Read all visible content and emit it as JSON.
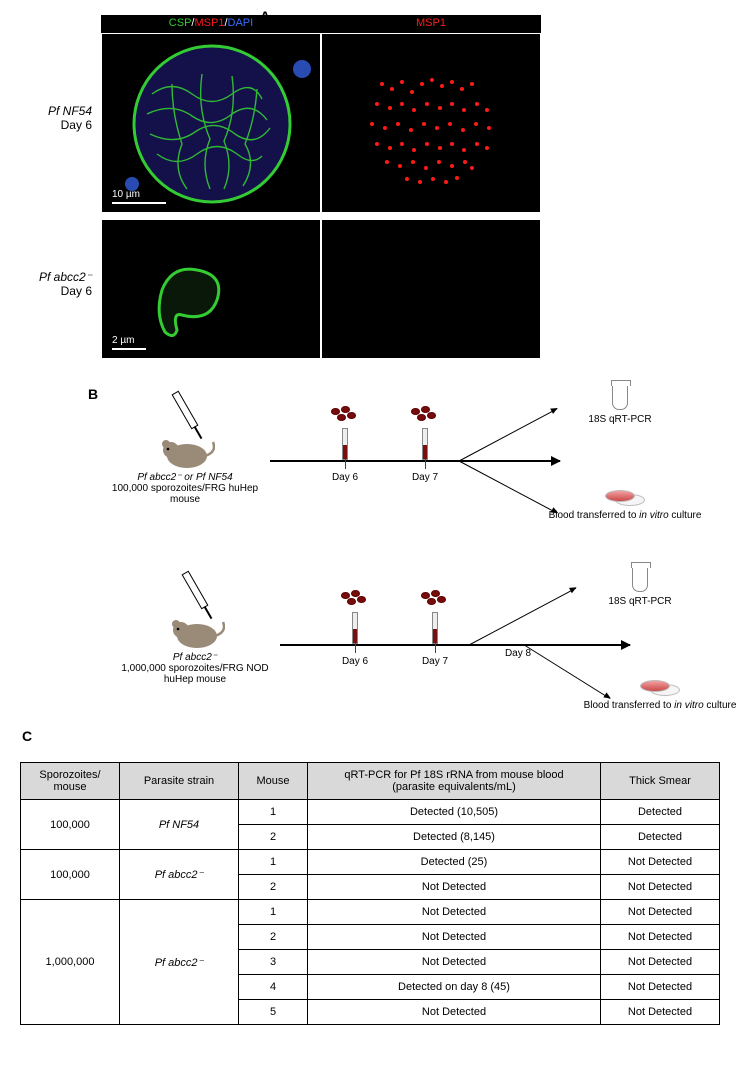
{
  "panelA": {
    "label": "A",
    "headers": {
      "left_csp": "CSP",
      "left_msp1": "MSP1",
      "left_dapi": "DAPI",
      "right": "MSP1"
    },
    "header_colors": {
      "csp": "#33cc33",
      "msp1": "#ff1a1a",
      "dapi": "#3a6cff",
      "sep": "#ffffff"
    },
    "rows": [
      {
        "strain": "Pf NF54",
        "day": "Day 6",
        "scale_text": "10 µm",
        "scale_w": 54
      },
      {
        "strain": "Pf abcc2⁻",
        "day": "Day 6",
        "scale_text": "2 µm",
        "scale_w": 34
      }
    ]
  },
  "panelB": {
    "label": "B",
    "exp1": {
      "inject_line1": "Pf abcc2⁻ or Pf NF54",
      "inject_line2": "100,000 sporozoites/FRG huHep mouse",
      "days": [
        "Day 6",
        "Day 7"
      ],
      "end_top": "18S qRT-PCR",
      "end_bottom": "Blood transferred to in vitro culture"
    },
    "exp2": {
      "inject_line1": "Pf abcc2⁻",
      "inject_line2": "1,000,000 sporozoites/FRG NOD huHep mouse",
      "days": [
        "Day 6",
        "Day 7",
        "Day 8"
      ],
      "end_top": "18S qRT-PCR",
      "end_bottom": "Blood transferred to in vitro culture"
    }
  },
  "panelC": {
    "label": "C",
    "columns": [
      "Sporozoites/\nmouse",
      "Parasite strain",
      "Mouse",
      "qRT-PCR for Pf 18S rRNA from mouse blood\n(parasite equivalents/mL)",
      "Thick Smear"
    ],
    "groups": [
      {
        "sporo": "100,000",
        "strain": "Pf NF54",
        "rows": [
          {
            "mouse": "1",
            "qrt": "Detected (10,505)",
            "smear": "Detected"
          },
          {
            "mouse": "2",
            "qrt": "Detected (8,145)",
            "smear": "Detected"
          }
        ]
      },
      {
        "sporo": "100,000",
        "strain": "Pf abcc2⁻",
        "rows": [
          {
            "mouse": "1",
            "qrt": "Detected (25)",
            "smear": "Not Detected"
          },
          {
            "mouse": "2",
            "qrt": "Not Detected",
            "smear": "Not Detected"
          }
        ]
      },
      {
        "sporo": "1,000,000",
        "strain": "Pf abcc2⁻",
        "rows": [
          {
            "mouse": "1",
            "qrt": "Not Detected",
            "smear": "Not Detected"
          },
          {
            "mouse": "2",
            "qrt": "Not Detected",
            "smear": "Not Detected"
          },
          {
            "mouse": "3",
            "qrt": "Not Detected",
            "smear": "Not Detected"
          },
          {
            "mouse": "4",
            "qrt": "Detected on day 8 (45)",
            "smear": "Not Detected"
          },
          {
            "mouse": "5",
            "qrt": "Not Detected",
            "smear": "Not Detected"
          }
        ]
      }
    ]
  },
  "style": {
    "bg": "#ffffff",
    "black": "#000000",
    "table_header_bg": "#d9d9d9",
    "font_base": 12
  }
}
